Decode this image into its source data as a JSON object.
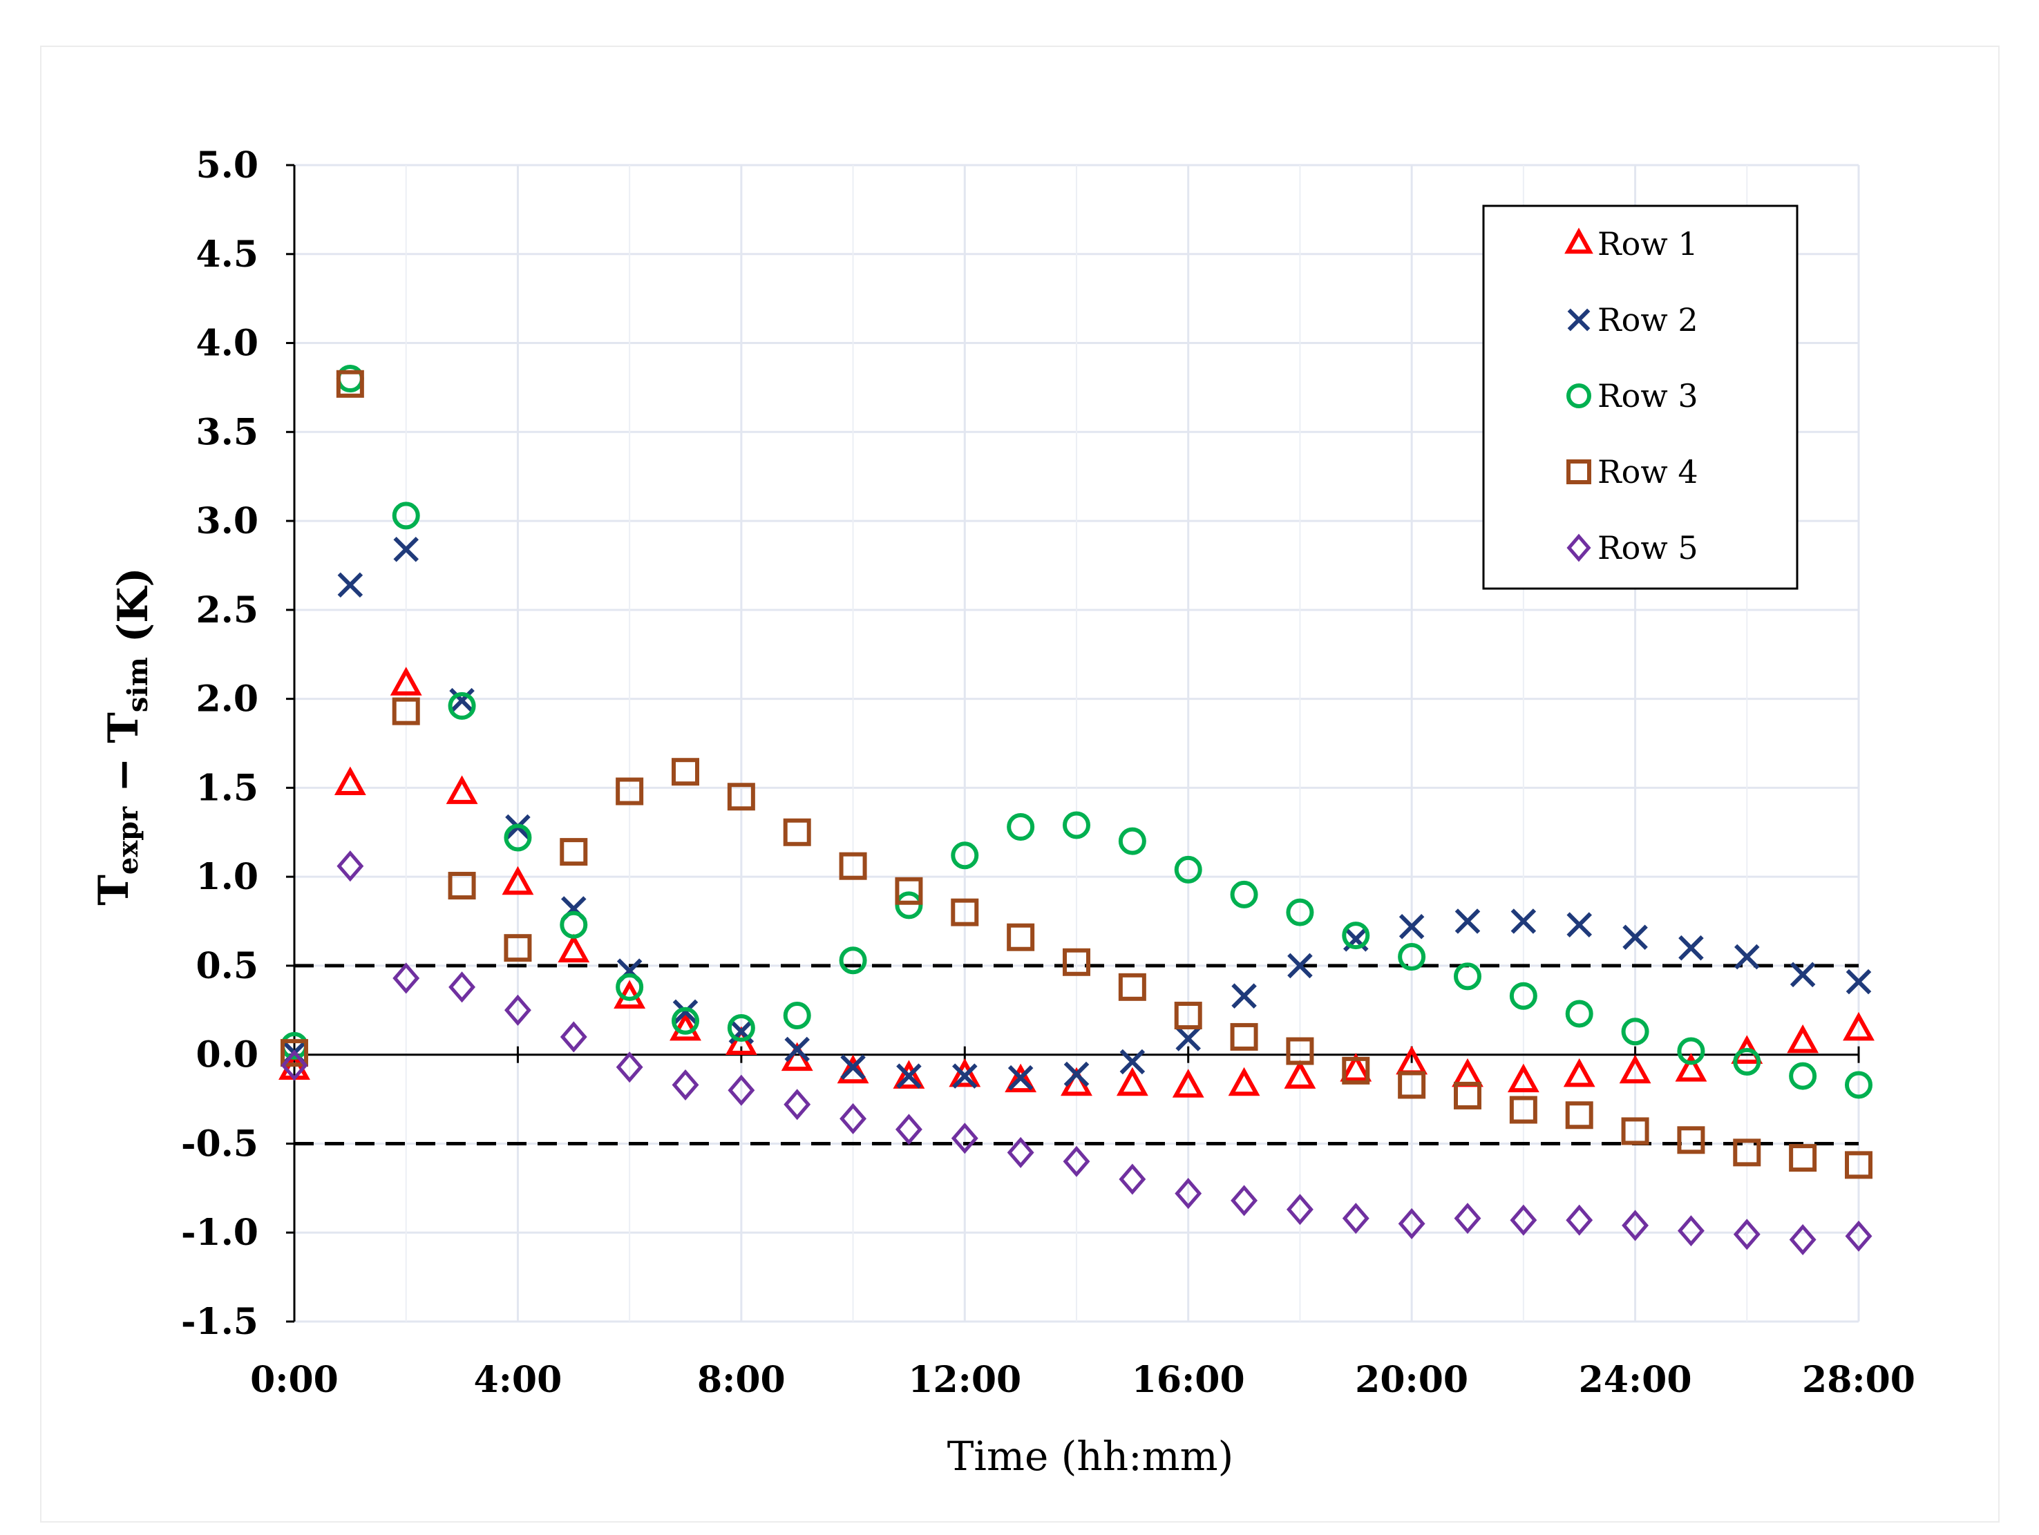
{
  "chart_data": {
    "type": "scatter",
    "title": "",
    "xlabel": "Time (hh:mm)",
    "ylabel": {
      "parts": [
        {
          "text": "T",
          "sub": "expr"
        },
        {
          "text": " − T",
          "sub": "sim"
        },
        {
          "text": " (K)",
          "sub": ""
        }
      ]
    },
    "xlim": [
      0,
      28
    ],
    "ylim": [
      -1.5,
      5.0
    ],
    "x_ticks": [
      0,
      4,
      8,
      12,
      16,
      20,
      24,
      28
    ],
    "x_tick_labels": [
      "0:00",
      "4:00",
      "8:00",
      "12:00",
      "16:00",
      "20:00",
      "24:00",
      "28:00"
    ],
    "y_ticks": [
      -1.5,
      -1.0,
      -0.5,
      0.0,
      0.5,
      1.0,
      1.5,
      2.0,
      2.5,
      3.0,
      3.5,
      4.0,
      4.5,
      5.0
    ],
    "y_tick_labels": [
      "-1.5",
      "-1.0",
      "-0.5",
      "0.0",
      "0.5",
      "1.0",
      "1.5",
      "2.0",
      "2.5",
      "3.0",
      "3.5",
      "4.0",
      "4.5",
      "5.0"
    ],
    "grid": true,
    "reference_lines": [
      0.5,
      -0.5
    ],
    "legend_position": "top-right",
    "x": [
      0,
      1,
      2,
      3,
      4,
      5,
      6,
      7,
      8,
      9,
      10,
      11,
      12,
      13,
      14,
      15,
      16,
      17,
      18,
      19,
      20,
      21,
      22,
      23,
      24,
      25,
      26,
      27,
      28
    ],
    "series": [
      {
        "name": "Row 1",
        "marker": "triangle",
        "color": "#ff0000",
        "values": [
          -0.08,
          1.52,
          2.08,
          1.47,
          0.96,
          0.58,
          0.32,
          0.14,
          0.06,
          -0.03,
          -0.1,
          -0.13,
          -0.12,
          -0.15,
          -0.17,
          -0.17,
          -0.18,
          -0.17,
          -0.13,
          -0.09,
          -0.05,
          -0.12,
          -0.15,
          -0.12,
          -0.1,
          -0.09,
          0.01,
          0.07,
          0.14
        ]
      },
      {
        "name": "Row 2",
        "marker": "x",
        "color": "#1f3a7a",
        "values": [
          0.01,
          2.64,
          2.84,
          1.99,
          1.28,
          0.82,
          0.47,
          0.24,
          0.13,
          0.03,
          -0.07,
          -0.12,
          -0.12,
          -0.13,
          -0.11,
          -0.04,
          0.09,
          0.33,
          0.5,
          0.65,
          0.72,
          0.75,
          0.75,
          0.73,
          0.66,
          0.6,
          0.55,
          0.45,
          0.41
        ]
      },
      {
        "name": "Row 3",
        "marker": "circle",
        "color": "#00b050",
        "values": [
          0.05,
          3.8,
          3.03,
          1.96,
          1.22,
          0.73,
          0.38,
          0.19,
          0.15,
          0.22,
          0.53,
          0.84,
          1.12,
          1.28,
          1.29,
          1.2,
          1.04,
          0.9,
          0.8,
          0.67,
          0.55,
          0.44,
          0.33,
          0.23,
          0.13,
          0.02,
          -0.04,
          -0.12,
          -0.17
        ]
      },
      {
        "name": "Row 4",
        "marker": "square",
        "color": "#9c4a1c",
        "values": [
          0.01,
          3.77,
          1.93,
          0.95,
          0.6,
          1.14,
          1.48,
          1.59,
          1.45,
          1.25,
          1.06,
          0.92,
          0.8,
          0.66,
          0.52,
          0.38,
          0.22,
          0.1,
          0.02,
          -0.09,
          -0.17,
          -0.23,
          -0.31,
          -0.34,
          -0.43,
          -0.48,
          -0.55,
          -0.58,
          -0.62
        ]
      },
      {
        "name": "Row 5",
        "marker": "diamond",
        "color": "#7030a0",
        "values": [
          -0.06,
          1.06,
          0.43,
          0.38,
          0.25,
          0.1,
          -0.07,
          -0.17,
          -0.2,
          -0.28,
          -0.36,
          -0.42,
          -0.47,
          -0.55,
          -0.6,
          -0.7,
          -0.78,
          -0.82,
          -0.87,
          -0.92,
          -0.95,
          -0.92,
          -0.93,
          -0.93,
          -0.96,
          -0.99,
          -1.01,
          -1.04,
          -1.02
        ]
      }
    ]
  }
}
